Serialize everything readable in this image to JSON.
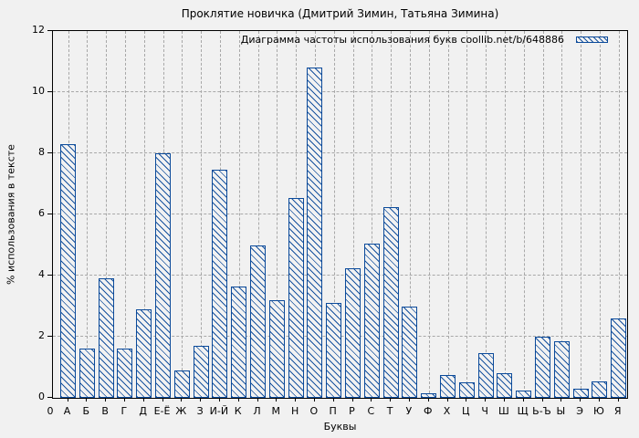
{
  "title": "Проклятие новичка (Дмитрий Зимин, Татьяна Зимина)",
  "legend": {
    "label": "Диаграмма частоты использования букв coollib.net/b/648886",
    "swatch": "blue-diagonal-hatch"
  },
  "axes": {
    "y_label": "% использования в тексте",
    "x_label": "Буквы",
    "x_origin_label": "0",
    "y_ticks": [
      0,
      2,
      4,
      6,
      8,
      10,
      12
    ],
    "y_max": 12
  },
  "colors": {
    "bar_stroke": "#0b4a9a",
    "grid": "#a8a8a8",
    "background": "#f1f1f1",
    "axis": "#000000",
    "text": "#000000"
  },
  "chart_data": {
    "type": "bar",
    "title": "Проклятие новичка (Дмитрий Зимин, Татьяна Зимина)",
    "legend_entry": "Диаграмма частоты использования букв coollib.net/b/648886",
    "legend_position": "top-right",
    "xlabel": "Буквы",
    "ylabel": "% использования в тексте",
    "ylim": [
      0,
      12
    ],
    "grid": true,
    "bar_style": "blue diagonal hatch, light fill",
    "categories": [
      "А",
      "Б",
      "В",
      "Г",
      "Д",
      "Е-Ё",
      "Ж",
      "З",
      "И-Й",
      "К",
      "Л",
      "М",
      "Н",
      "О",
      "П",
      "Р",
      "С",
      "Т",
      "У",
      "Ф",
      "Х",
      "Ц",
      "Ч",
      "Ш",
      "Щ",
      "Ь-Ъ",
      "Ы",
      "Э",
      "Ю",
      "Я"
    ],
    "values": [
      8.3,
      1.6,
      3.9,
      1.6,
      2.9,
      8.0,
      0.9,
      1.7,
      7.45,
      3.65,
      5.0,
      3.2,
      6.55,
      10.8,
      3.1,
      4.25,
      5.05,
      6.25,
      3.0,
      0.15,
      0.75,
      0.5,
      1.45,
      0.8,
      0.25,
      2.0,
      1.85,
      0.3,
      0.55,
      2.6
    ]
  }
}
